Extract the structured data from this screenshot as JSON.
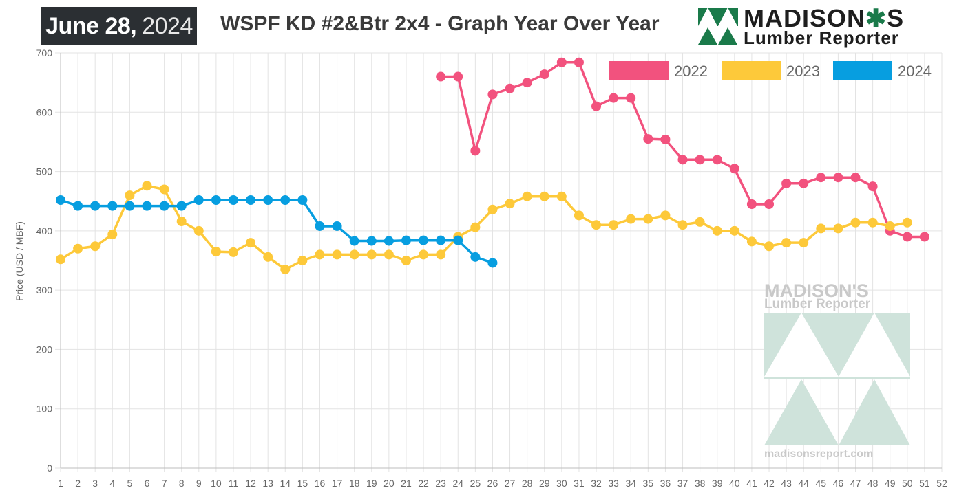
{
  "header": {
    "date_bold": "June 28,",
    "date_year": "2024",
    "title": "WSPF KD #2&Btr 2x4 - Graph Year Over Year"
  },
  "brand": {
    "name_part1": "MADISON",
    "name_part2": "S",
    "subtitle": "Lumber Reporter",
    "leaf_icon": "maple-leaf-icon",
    "logo_icon": "triangles-logo-icon"
  },
  "watermark": {
    "name": "MADISON'S",
    "subtitle": "Lumber Reporter",
    "url": "madisonsreport.com"
  },
  "colors": {
    "2022": "#f2527e",
    "2023": "#fdc93a",
    "2024": "#079ee0",
    "grid": "#e3e3e3",
    "brand_green": "#1a7a4a",
    "watermark_green": "#cfe3db"
  },
  "chart_data": {
    "type": "line",
    "title": "WSPF KD #2&Btr 2x4 - Graph Year Over Year",
    "xlabel": "",
    "ylabel": "Price (USD / MBF)",
    "ylim": [
      0,
      700
    ],
    "yticks": [
      0,
      100,
      200,
      300,
      400,
      500,
      600,
      700
    ],
    "x": [
      1,
      2,
      3,
      4,
      5,
      6,
      7,
      8,
      9,
      10,
      11,
      12,
      13,
      14,
      15,
      16,
      17,
      18,
      19,
      20,
      21,
      22,
      23,
      24,
      25,
      26,
      27,
      28,
      29,
      30,
      31,
      32,
      33,
      34,
      35,
      36,
      37,
      38,
      39,
      40,
      41,
      42,
      43,
      44,
      45,
      46,
      47,
      48,
      49,
      50,
      51,
      52
    ],
    "grid": true,
    "legend_position": "top-right",
    "series": [
      {
        "name": "2022",
        "color": "#f2527e",
        "x": [
          23,
          24,
          25,
          26,
          27,
          28,
          29,
          30,
          31,
          32,
          33,
          34,
          35,
          36,
          37,
          38,
          39,
          40,
          41,
          42,
          43,
          44,
          45,
          46,
          47,
          48,
          49,
          50,
          51
        ],
        "values": [
          660,
          660,
          535,
          630,
          640,
          650,
          664,
          684,
          684,
          610,
          624,
          624,
          555,
          554,
          520,
          520,
          520,
          505,
          445,
          445,
          480,
          480,
          490,
          490,
          490,
          475,
          400,
          390,
          390
        ]
      },
      {
        "name": "2023",
        "color": "#fdc93a",
        "x": [
          1,
          2,
          3,
          4,
          5,
          6,
          7,
          8,
          9,
          10,
          11,
          12,
          13,
          14,
          15,
          16,
          17,
          18,
          19,
          20,
          21,
          22,
          23,
          24,
          25,
          26,
          27,
          28,
          29,
          30,
          31,
          32,
          33,
          34,
          35,
          36,
          37,
          38,
          39,
          40,
          41,
          42,
          43,
          44,
          45,
          46,
          47,
          48,
          49,
          50
        ],
        "values": [
          352,
          370,
          374,
          394,
          460,
          476,
          470,
          416,
          400,
          365,
          364,
          380,
          356,
          335,
          350,
          360,
          360,
          360,
          360,
          360,
          350,
          360,
          360,
          390,
          406,
          436,
          446,
          458,
          458,
          458,
          426,
          410,
          410,
          420,
          420,
          426,
          410,
          415,
          400,
          400,
          382,
          374,
          380,
          380,
          404,
          404,
          414,
          414,
          408,
          414
        ]
      },
      {
        "name": "2024",
        "color": "#079ee0",
        "x": [
          1,
          2,
          3,
          4,
          5,
          6,
          7,
          8,
          9,
          10,
          11,
          12,
          13,
          14,
          15,
          16,
          17,
          18,
          19,
          20,
          21,
          22,
          23,
          24,
          25,
          26
        ],
        "values": [
          452,
          442,
          442,
          442,
          442,
          442,
          442,
          442,
          452,
          452,
          452,
          452,
          452,
          452,
          452,
          408,
          408,
          383,
          383,
          383,
          384,
          384,
          384,
          384,
          356,
          346
        ]
      }
    ]
  }
}
